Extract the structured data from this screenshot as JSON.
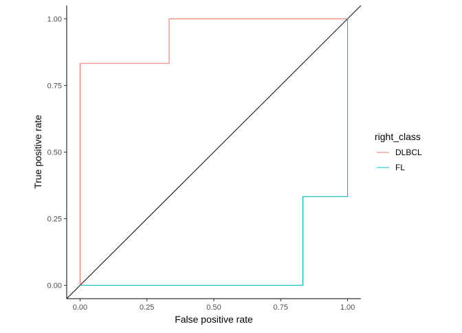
{
  "chart_data": {
    "type": "line",
    "title": "",
    "xlabel": "False positive rate",
    "ylabel": "True positive rate",
    "xlim": [
      -0.05,
      1.05
    ],
    "ylim": [
      -0.05,
      1.05
    ],
    "x_ticks": [
      0,
      0.25,
      0.5,
      0.75,
      1
    ],
    "y_ticks": [
      0,
      0.25,
      0.5,
      0.75,
      1
    ],
    "x_tick_labels": [
      "0.00",
      "0.25",
      "0.50",
      "0.75",
      "1.00"
    ],
    "y_tick_labels": [
      "0.00",
      "0.25",
      "0.50",
      "0.75",
      "1.00"
    ],
    "grid": false,
    "legend": {
      "title": "right_class",
      "placement": "right"
    },
    "reference_line": {
      "slope": 1,
      "intercept": 0,
      "color": "#000000"
    },
    "series": [
      {
        "name": "DLBCL",
        "color": "#F8766D",
        "step": true,
        "x": [
          0,
          0,
          0.333,
          0.333,
          1
        ],
        "y": [
          0,
          0.833,
          0.833,
          1,
          1
        ]
      },
      {
        "name": "FL",
        "color": "#00BFC4",
        "step": true,
        "x": [
          0,
          0.833,
          0.833,
          1,
          1
        ],
        "y": [
          0,
          0,
          0.333,
          0.333,
          1
        ]
      }
    ]
  }
}
